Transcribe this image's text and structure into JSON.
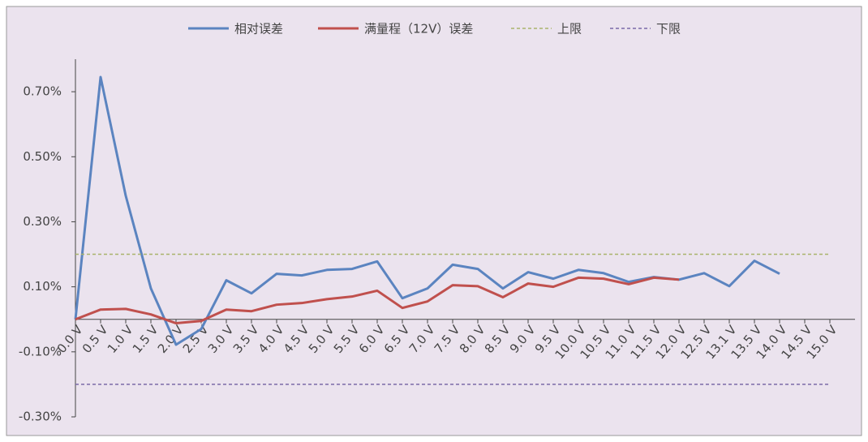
{
  "chart_data": {
    "type": "line",
    "categories": [
      "0.0 V",
      "0.5 V",
      "1.0 V",
      "1.5 V",
      "2.0 V",
      "2.5 V",
      "3.0 V",
      "3.5 V",
      "4.0 V",
      "4.5 V",
      "5.0 V",
      "5.5 V",
      "6.0 V",
      "6.5 V",
      "7.0 V",
      "7.5 V",
      "8.0 V",
      "8.5 V",
      "9.0 V",
      "9.5 V",
      "10.0 V",
      "10.5 V",
      "11.0 V",
      "11.5 V",
      "12.0 V",
      "12.5 V",
      "13.1 V",
      "13.5 V",
      "14.0 V",
      "14.5 V",
      "15.0 V"
    ],
    "series": [
      {
        "name": "相对误差",
        "color": "#5b84c0",
        "dashed": false,
        "values": [
          0,
          0.745,
          0.38,
          0.095,
          -0.078,
          -0.03,
          0.12,
          0.08,
          0.14,
          0.135,
          0.152,
          0.155,
          0.178,
          0.065,
          0.095,
          0.168,
          0.155,
          0.095,
          0.145,
          0.125,
          0.152,
          0.142,
          0.115,
          0.13,
          0.122,
          0.142,
          0.102,
          0.18,
          0.14,
          null,
          null
        ]
      },
      {
        "name": "满量程（12V）误差",
        "color": "#c0504d",
        "dashed": false,
        "values": [
          0,
          0.03,
          0.032,
          0.015,
          -0.012,
          -0.005,
          0.03,
          0.025,
          0.045,
          0.05,
          0.062,
          0.07,
          0.088,
          0.035,
          0.055,
          0.105,
          0.102,
          0.068,
          0.11,
          0.1,
          0.128,
          0.125,
          0.108,
          0.128,
          0.122,
          null,
          null,
          null,
          null,
          null,
          null
        ]
      },
      {
        "name": "上限",
        "color": "#a9b36b",
        "dashed": true,
        "values": [
          0.2,
          0.2,
          0.2,
          0.2,
          0.2,
          0.2,
          0.2,
          0.2,
          0.2,
          0.2,
          0.2,
          0.2,
          0.2,
          0.2,
          0.2,
          0.2,
          0.2,
          0.2,
          0.2,
          0.2,
          0.2,
          0.2,
          0.2,
          0.2,
          0.2,
          0.2,
          0.2,
          0.2,
          0.2,
          0.2,
          0.2
        ]
      },
      {
        "name": "下限",
        "color": "#7b6aa8",
        "dashed": true,
        "values": [
          -0.2,
          -0.2,
          -0.2,
          -0.2,
          -0.2,
          -0.2,
          -0.2,
          -0.2,
          -0.2,
          -0.2,
          -0.2,
          -0.2,
          -0.2,
          -0.2,
          -0.2,
          -0.2,
          -0.2,
          -0.2,
          -0.2,
          -0.2,
          -0.2,
          -0.2,
          -0.2,
          -0.2,
          -0.2,
          -0.2,
          -0.2,
          -0.2,
          -0.2,
          -0.2,
          -0.2
        ]
      }
    ],
    "ylim": [
      -0.3,
      0.8
    ],
    "yticks": [
      {
        "value": -0.3,
        "label": "-0.30%"
      },
      {
        "value": -0.1,
        "label": "-0.10%"
      },
      {
        "value": 0.1,
        "label": "0.10%"
      },
      {
        "value": 0.3,
        "label": "0.30%"
      },
      {
        "value": 0.5,
        "label": "0.50%"
      },
      {
        "value": 0.7,
        "label": "0.70%"
      }
    ],
    "legend": "top"
  }
}
